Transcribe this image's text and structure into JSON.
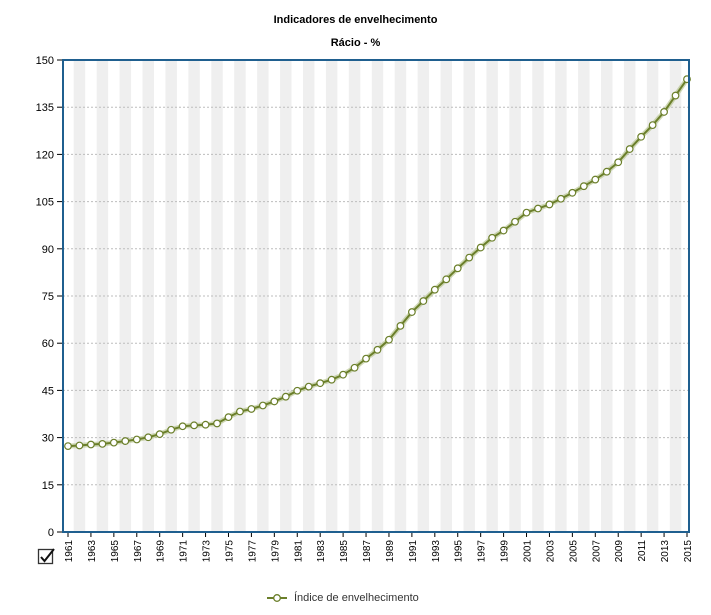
{
  "chart_data": {
    "type": "line",
    "title": "Indicadores de envelhecimento",
    "subtitle": "Rácio - %",
    "xlabel": "",
    "ylabel": "",
    "ylim": [
      0,
      150
    ],
    "yticks": [
      0,
      15,
      30,
      45,
      60,
      75,
      90,
      105,
      120,
      135,
      150
    ],
    "x": [
      1961,
      1962,
      1963,
      1964,
      1965,
      1966,
      1967,
      1968,
      1969,
      1970,
      1971,
      1972,
      1973,
      1974,
      1975,
      1976,
      1977,
      1978,
      1979,
      1980,
      1981,
      1982,
      1983,
      1984,
      1985,
      1986,
      1987,
      1988,
      1989,
      1990,
      1991,
      1992,
      1993,
      1994,
      1995,
      1996,
      1997,
      1998,
      1999,
      2000,
      2001,
      2002,
      2003,
      2004,
      2005,
      2006,
      2007,
      2008,
      2009,
      2010,
      2011,
      2012,
      2013,
      2014,
      2015
    ],
    "xtick_labels": [
      "1961",
      "1963",
      "1965",
      "1967",
      "1969",
      "1971",
      "1973",
      "1975",
      "1977",
      "1979",
      "1981",
      "1983",
      "1985",
      "1987",
      "1989",
      "1991",
      "1993",
      "1995",
      "1997",
      "1999",
      "2001",
      "2003",
      "2005",
      "2007",
      "2009",
      "2011",
      "2013",
      "2015"
    ],
    "series": [
      {
        "name": "Índice de envelhecimento",
        "color": "#6b7f2a",
        "values": [
          27.3,
          27.5,
          27.8,
          28.0,
          28.4,
          28.9,
          29.4,
          30.1,
          31.1,
          32.5,
          33.6,
          33.9,
          34.1,
          34.5,
          36.5,
          38.3,
          39.1,
          40.2,
          41.5,
          43.0,
          44.9,
          46.2,
          47.3,
          48.4,
          50.0,
          52.2,
          55.1,
          57.9,
          61.1,
          65.5,
          69.9,
          73.4,
          77.0,
          80.3,
          83.8,
          87.2,
          90.4,
          93.5,
          95.8,
          98.6,
          101.5,
          102.8,
          104.1,
          105.9,
          107.8,
          109.9,
          112.0,
          114.5,
          117.5,
          121.7,
          125.6,
          129.3,
          133.5,
          138.7,
          143.9
        ]
      }
    ],
    "grid": true,
    "legend_position": "bottom"
  }
}
